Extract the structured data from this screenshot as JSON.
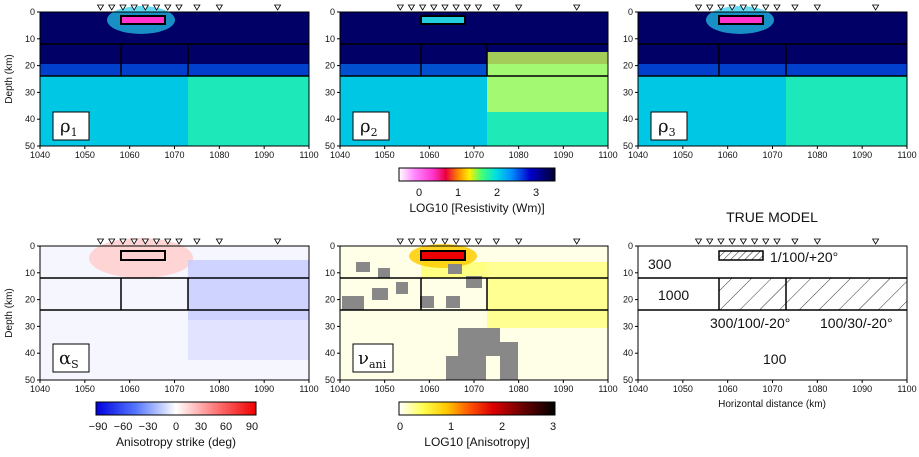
{
  "axes": {
    "depth_label": "Depth (km)",
    "depth_ticks": [
      "0",
      "10",
      "20",
      "30",
      "40",
      "50"
    ],
    "x_ticks": [
      "1040",
      "1050",
      "1060",
      "1070",
      "1080",
      "1090",
      "1100"
    ],
    "horizontal_label": "Horizontal distance (km)"
  },
  "panels": {
    "rho1": {
      "base": "ρ",
      "sub": "1"
    },
    "rho2": {
      "base": "ρ",
      "sub": "2"
    },
    "rho3": {
      "base": "ρ",
      "sub": "3"
    },
    "alpha": {
      "base": "α",
      "sub": "S"
    },
    "nu": {
      "base": "ν",
      "sub": "ani"
    }
  },
  "colorbars": {
    "resistivity": {
      "ticks": [
        "0",
        "1",
        "2",
        "3"
      ],
      "label": "LOG10 [Resistivity (Wm)]"
    },
    "strike": {
      "ticks": [
        "−90",
        "−60",
        "−30",
        "0",
        "30",
        "60",
        "90"
      ],
      "label": "Anisotropy strike (deg)"
    },
    "anisotropy": {
      "ticks": [
        "0",
        "1",
        "2",
        "3"
      ],
      "label": "LOG10 [Anisotropy]"
    }
  },
  "true_model": {
    "title": "TRUE MODEL",
    "labels": {
      "upper": "300",
      "block": "1/100/+20°",
      "left": "1000",
      "middle": "300/100/-20°",
      "right": "100/30/-20°",
      "bottom": "100"
    }
  },
  "colors": {
    "resistivity_scale": [
      "#ffffff",
      "#ff66ff",
      "#e8003c",
      "#ff7a00",
      "#ffe600",
      "#44ff77",
      "#00e5e5",
      "#0090ff",
      "#0000d0",
      "#000040"
    ],
    "strike_scale": [
      "#0000dd",
      "#4466ff",
      "#aabbff",
      "#ffffff",
      "#ffaaaa",
      "#ff5555",
      "#ee0000"
    ],
    "anisotropy_scale": [
      "#ffffff",
      "#ffff44",
      "#ff9900",
      "#ee0000",
      "#880000",
      "#000000"
    ]
  }
}
